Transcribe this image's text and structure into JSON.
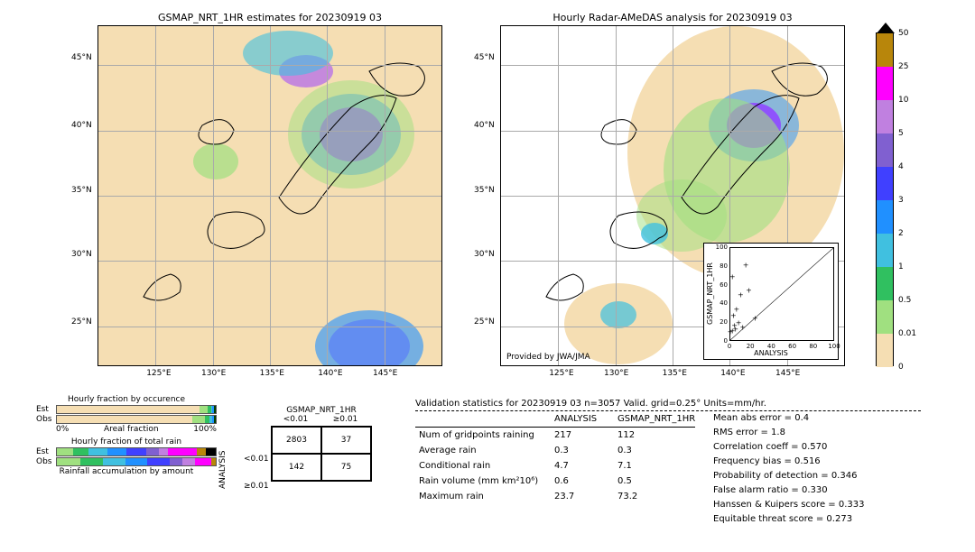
{
  "maps": {
    "bg_color": "#f5deb3",
    "grid_color": "#aaaaaa",
    "xticks": [
      "125°E",
      "130°E",
      "135°E",
      "140°E",
      "145°E"
    ],
    "xtick_vals": [
      125,
      130,
      135,
      140,
      145
    ],
    "yticks": [
      "25°N",
      "30°N",
      "35°N",
      "40°N",
      "45°N"
    ],
    "ytick_vals": [
      25,
      30,
      35,
      40,
      45
    ],
    "xlim": [
      120,
      150
    ],
    "ylim": [
      22,
      48
    ],
    "left": {
      "title": "GSMAP_NRT_1HR estimates for 20230919 03"
    },
    "right": {
      "title": "Hourly Radar-AMeDAS analysis for 20230919 03",
      "attribution": "Provided by JWA/JMA"
    }
  },
  "colorbar": {
    "ticks": [
      50,
      25,
      10,
      5,
      4,
      3,
      2,
      1,
      0.5,
      0.01,
      0
    ],
    "colors": [
      "#b8860b",
      "#ff00ff",
      "#c080e0",
      "#8060d0",
      "#4040ff",
      "#2090ff",
      "#40c0e0",
      "#30c060",
      "#a0e080",
      "#f5deb3"
    ]
  },
  "scatter": {
    "xlabel": "ANALYSIS",
    "ylabel": "GSMAP_NRT_1HR",
    "lim": [
      0,
      100
    ],
    "ticks": [
      0,
      20,
      40,
      60,
      80,
      100
    ],
    "points": [
      [
        0,
        0
      ],
      [
        2,
        1
      ],
      [
        5,
        3
      ],
      [
        4,
        7
      ],
      [
        8,
        10
      ],
      [
        12,
        5
      ],
      [
        3,
        18
      ],
      [
        6,
        25
      ],
      [
        10,
        40
      ],
      [
        24,
        15
      ],
      [
        2,
        60
      ],
      [
        18,
        45
      ],
      [
        15,
        73
      ]
    ]
  },
  "fractions": {
    "occ_title": "Hourly fraction by occurence",
    "occ_xlabel": "Areal fraction",
    "total_title": "Hourly fraction of total rain",
    "accum_label": "Rainfall accumulation by amount",
    "row_labels": [
      "Est",
      "Obs"
    ],
    "occ_est": [
      {
        "c": "#f5deb3",
        "w": 90
      },
      {
        "c": "#a0e080",
        "w": 5
      },
      {
        "c": "#30c060",
        "w": 2
      },
      {
        "c": "#40c0e0",
        "w": 1
      },
      {
        "c": "#2090ff",
        "w": 1
      },
      {
        "c": "#004000",
        "w": 1
      }
    ],
    "occ_obs": [
      {
        "c": "#f5deb3",
        "w": 85
      },
      {
        "c": "#a0e080",
        "w": 8
      },
      {
        "c": "#30c060",
        "w": 3
      },
      {
        "c": "#40c0e0",
        "w": 2
      },
      {
        "c": "#2090ff",
        "w": 1
      },
      {
        "c": "#004000",
        "w": 1
      }
    ],
    "tot_est": [
      {
        "c": "#a0e080",
        "w": 10
      },
      {
        "c": "#30c060",
        "w": 10
      },
      {
        "c": "#40c0e0",
        "w": 12
      },
      {
        "c": "#2090ff",
        "w": 12
      },
      {
        "c": "#4040ff",
        "w": 12
      },
      {
        "c": "#8060d0",
        "w": 8
      },
      {
        "c": "#c080e0",
        "w": 6
      },
      {
        "c": "#ff00ff",
        "w": 18
      },
      {
        "c": "#b8860b",
        "w": 6
      },
      {
        "c": "#000000",
        "w": 6
      }
    ],
    "tot_obs": [
      {
        "c": "#a0e080",
        "w": 15
      },
      {
        "c": "#30c060",
        "w": 14
      },
      {
        "c": "#40c0e0",
        "w": 14
      },
      {
        "c": "#2090ff",
        "w": 14
      },
      {
        "c": "#4040ff",
        "w": 14
      },
      {
        "c": "#8060d0",
        "w": 8
      },
      {
        "c": "#c080e0",
        "w": 8
      },
      {
        "c": "#ff00ff",
        "w": 10
      },
      {
        "c": "#b8860b",
        "w": 3
      }
    ],
    "pct0": "0%",
    "pct100": "100%"
  },
  "contingency": {
    "title": "GSMAP_NRT_1HR",
    "col_labels": [
      "<0.01",
      "≥0.01"
    ],
    "row_title": "ANALYSIS",
    "row_labels": [
      "<0.01",
      "≥0.01"
    ],
    "cells": [
      [
        "2803",
        "37"
      ],
      [
        "142",
        "75"
      ]
    ]
  },
  "stats": {
    "title": "Validation statistics for 20230919 03  n=3057 Valid. grid=0.25°  Units=mm/hr.",
    "col_headers": [
      "",
      "ANALYSIS",
      "GSMAP_NRT_1HR"
    ],
    "rows": [
      {
        "label": "Num of gridpoints raining",
        "a": "217",
        "g": "112"
      },
      {
        "label": "Average rain",
        "a": "0.3",
        "g": "0.3"
      },
      {
        "label": "Conditional rain",
        "a": "4.7",
        "g": "7.1"
      },
      {
        "label": "Rain volume (mm km²10⁶)",
        "a": "0.6",
        "g": "0.5"
      },
      {
        "label": "Maximum rain",
        "a": "23.7",
        "g": "73.2"
      }
    ],
    "metrics": [
      {
        "k": "Mean abs error",
        "v": "0.4"
      },
      {
        "k": "RMS error",
        "v": "1.8"
      },
      {
        "k": "Correlation coeff",
        "v": "0.570"
      },
      {
        "k": "Frequency bias",
        "v": "0.516"
      },
      {
        "k": "Probability of detection",
        "v": "0.346"
      },
      {
        "k": "False alarm ratio",
        "v": "0.330"
      },
      {
        "k": "Hanssen & Kuipers score",
        "v": "0.333"
      },
      {
        "k": "Equitable threat score",
        "v": "0.273"
      }
    ]
  }
}
